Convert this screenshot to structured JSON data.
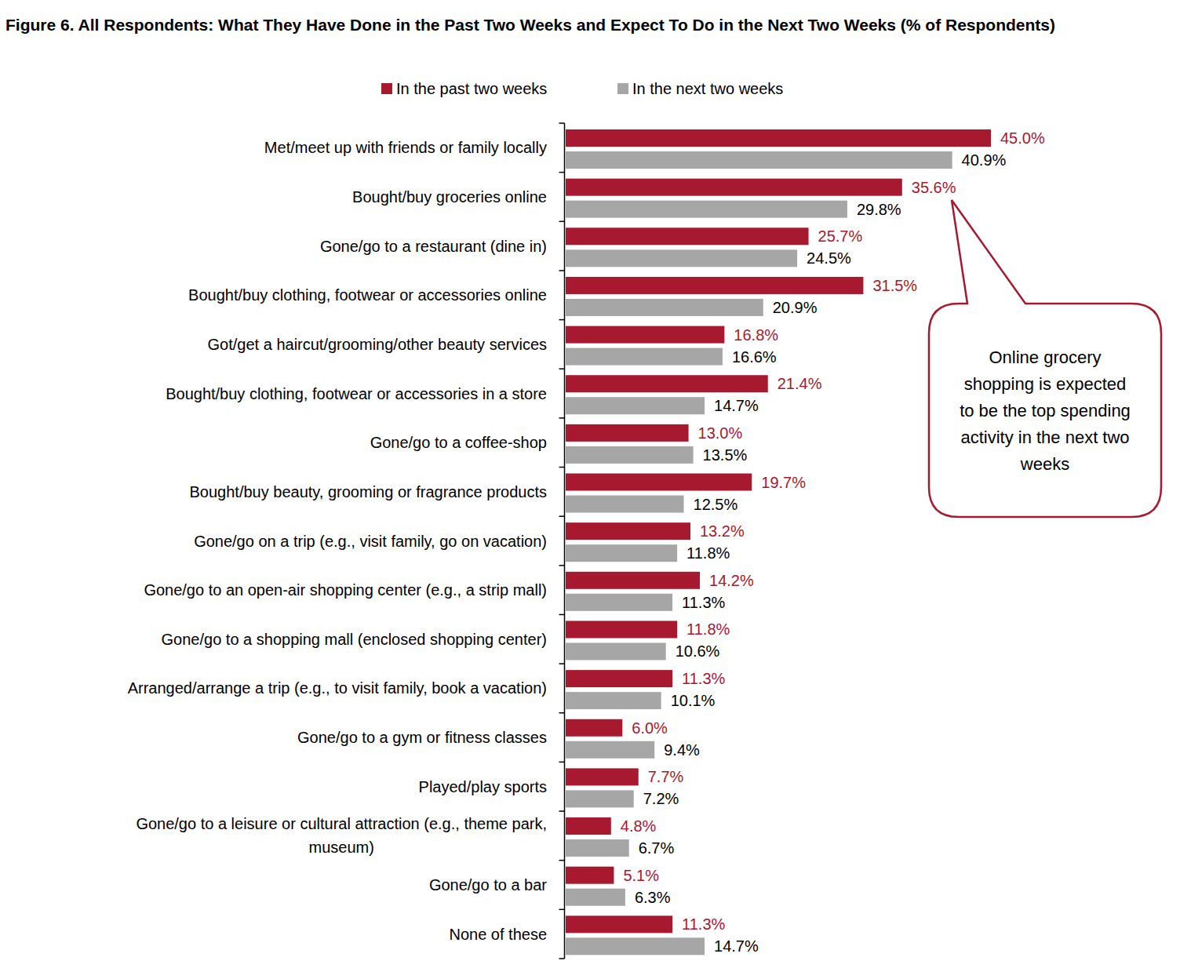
{
  "chart_data": {
    "type": "bar",
    "orientation": "horizontal",
    "title": "Figure 6. All Respondents: What They Have Done in the Past Two Weeks and Expect To Do in the Next Two Weeks (% of Respondents)",
    "categories": [
      "Met/meet up with friends or family locally",
      "Bought/buy groceries online",
      "Gone/go to a restaurant (dine in)",
      "Bought/buy clothing, footwear or accessories online",
      "Got/get a haircut/grooming/other beauty services",
      "Bought/buy clothing, footwear or accessories in a store",
      "Gone/go to a coffee-shop",
      "Bought/buy beauty, grooming or fragrance products",
      "Gone/go on a trip (e.g., visit family, go on vacation)",
      "Gone/go to an open-air shopping center (e.g., a strip mall)",
      "Gone/go to a shopping mall (enclosed shopping center)",
      "Arranged/arrange a trip (e.g., to visit family, book a vacation)",
      "Gone/go to a gym or fitness classes",
      "Played/play sports",
      "Gone/go to a leisure or cultural attraction (e.g., theme park, museum)",
      "Gone/go to a bar",
      "None of these"
    ],
    "series": [
      {
        "name": "In the past two weeks",
        "color": "#a6192e",
        "values": [
          45.0,
          35.6,
          25.7,
          31.5,
          16.8,
          21.4,
          13.0,
          19.7,
          13.2,
          14.2,
          11.8,
          11.3,
          6.0,
          7.7,
          4.8,
          5.1,
          11.3
        ],
        "value_labels": [
          "45.0%",
          "35.6%",
          "25.7%",
          "31.5%",
          "16.8%",
          "21.4%",
          "13.0%",
          "19.7%",
          "13.2%",
          "14.2%",
          "11.8%",
          "11.3%",
          "6.0%",
          "7.7%",
          "4.8%",
          "5.1%",
          "11.3%"
        ]
      },
      {
        "name": "In the next two weeks",
        "color": "#a6a6a6",
        "values": [
          40.9,
          29.8,
          24.5,
          20.9,
          16.6,
          14.7,
          13.5,
          12.5,
          11.8,
          11.3,
          10.6,
          10.1,
          9.4,
          7.2,
          6.7,
          6.3,
          14.7
        ],
        "value_labels": [
          "40.9%",
          "29.8%",
          "24.5%",
          "20.9%",
          "16.6%",
          "14.7%",
          "13.5%",
          "12.5%",
          "11.8%",
          "11.3%",
          "10.6%",
          "10.1%",
          "9.4%",
          "7.2%",
          "6.7%",
          "6.3%",
          "14.7%"
        ]
      }
    ],
    "xlim": [
      0,
      45
    ],
    "data_labels": true,
    "legend": "top",
    "tick_labels": "y",
    "annotations": [
      "Online grocery shopping is expected to be the top spending activity in the next two weeks"
    ]
  }
}
